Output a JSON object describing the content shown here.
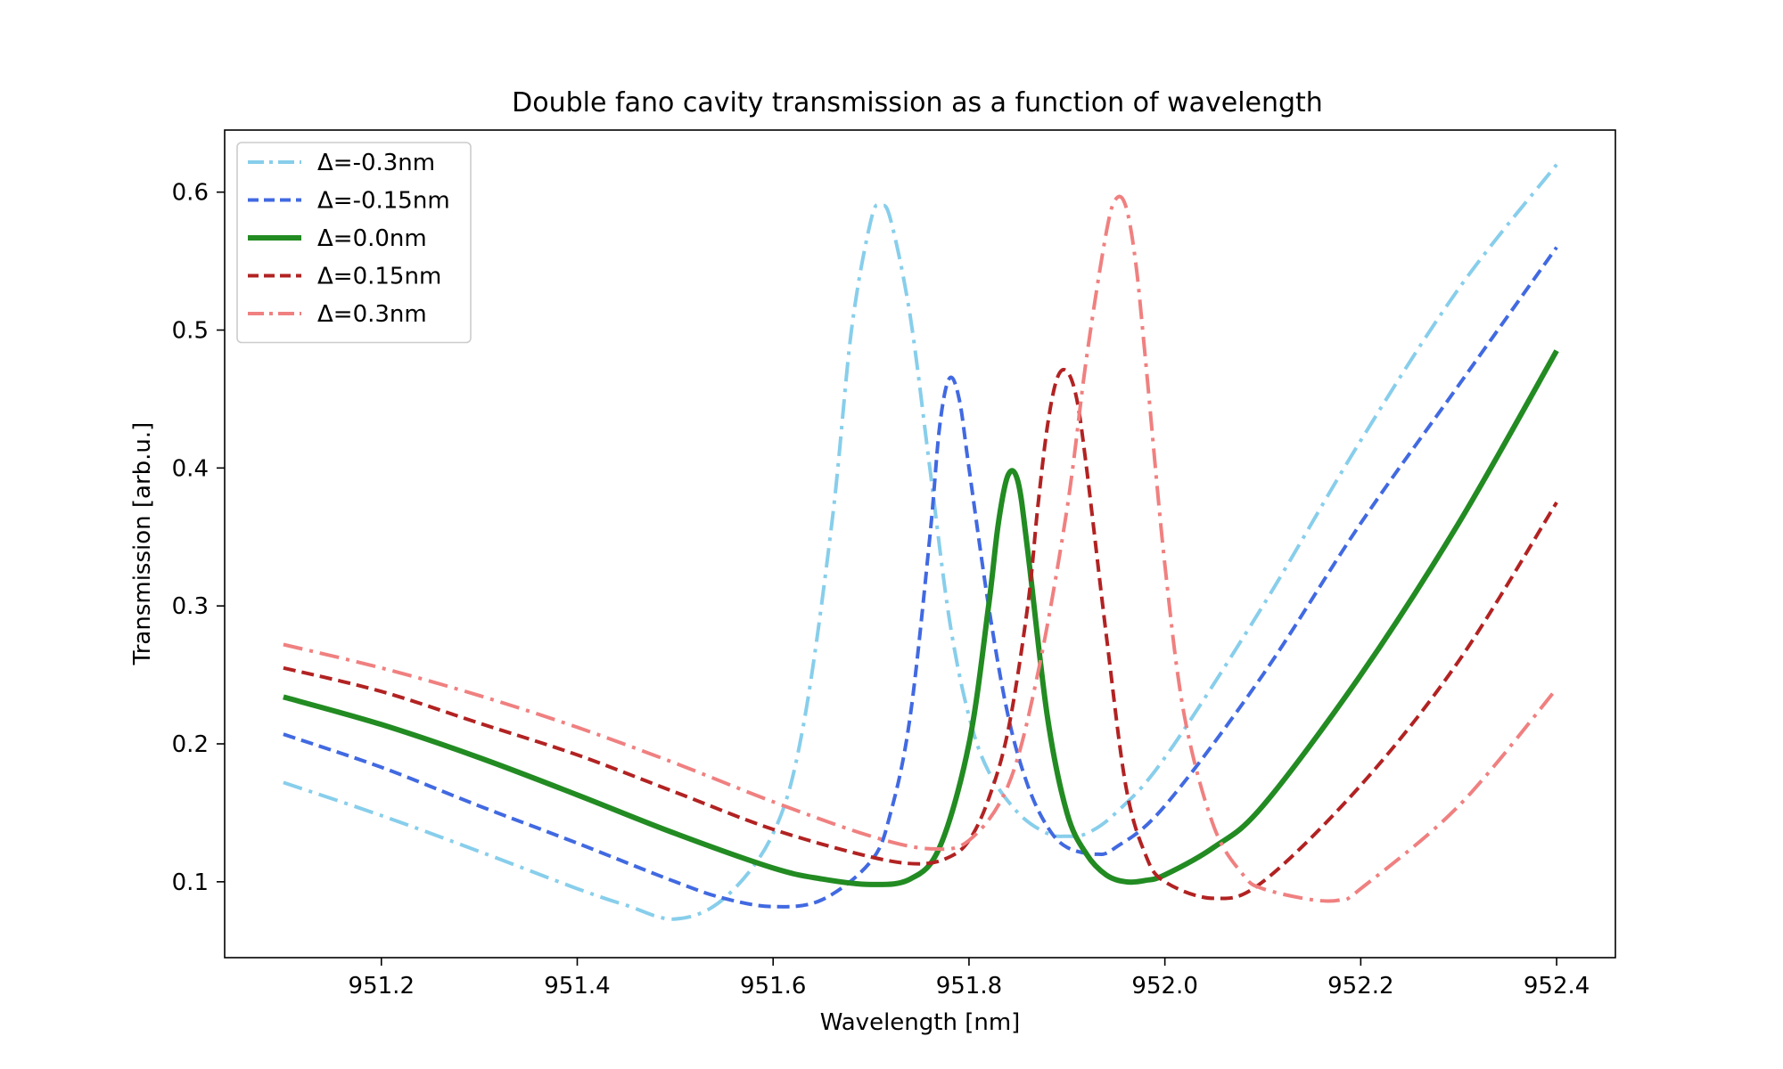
{
  "chart_data": {
    "type": "line",
    "title": "Double fano cavity transmission as a function of wavelength",
    "xlabel": "Wavelength [nm]",
    "ylabel": "Transmission [arb.u.]",
    "xlim": [
      951.04,
      952.46
    ],
    "ylim": [
      0.045,
      0.645
    ],
    "xticks": [
      951.2,
      951.4,
      951.6,
      951.8,
      952.0,
      952.2,
      952.4
    ],
    "xtick_labels": [
      "951.2",
      "951.4",
      "951.6",
      "951.8",
      "952.0",
      "952.2",
      "952.4"
    ],
    "yticks": [
      0.1,
      0.2,
      0.3,
      0.4,
      0.5,
      0.6
    ],
    "ytick_labels": [
      "0.1",
      "0.2",
      "0.3",
      "0.4",
      "0.5",
      "0.6"
    ],
    "grid": false,
    "legend": "top-left",
    "series": [
      {
        "name": "Δ=-0.3nm",
        "color": "#87CEEB",
        "style": "dashdot",
        "x": [
          951.1,
          951.2,
          951.3,
          951.4,
          951.45,
          951.5,
          951.55,
          951.6,
          951.63,
          951.66,
          951.68,
          951.7,
          951.71,
          951.72,
          951.74,
          951.76,
          951.78,
          951.8,
          951.82,
          951.85,
          951.88,
          951.9,
          951.92,
          951.95,
          952.0,
          952.1,
          952.2,
          952.3,
          952.4
        ],
        "y": [
          0.172,
          0.148,
          0.122,
          0.095,
          0.083,
          0.073,
          0.088,
          0.135,
          0.21,
          0.36,
          0.5,
          0.58,
          0.59,
          0.58,
          0.51,
          0.4,
          0.29,
          0.22,
          0.18,
          0.15,
          0.135,
          0.133,
          0.135,
          0.15,
          0.19,
          0.3,
          0.42,
          0.53,
          0.62
        ]
      },
      {
        "name": "Δ=-0.15nm",
        "color": "#4169E1",
        "style": "dashed",
        "x": [
          951.1,
          951.2,
          951.3,
          951.4,
          951.5,
          951.55,
          951.6,
          951.65,
          951.7,
          951.72,
          951.74,
          951.76,
          951.77,
          951.78,
          951.79,
          951.8,
          951.82,
          951.84,
          951.86,
          951.88,
          951.9,
          951.93,
          951.95,
          952.0,
          952.1,
          952.2,
          952.3,
          952.4
        ],
        "y": [
          0.207,
          0.183,
          0.155,
          0.128,
          0.1,
          0.088,
          0.082,
          0.087,
          0.115,
          0.15,
          0.22,
          0.35,
          0.43,
          0.465,
          0.45,
          0.4,
          0.3,
          0.22,
          0.17,
          0.14,
          0.125,
          0.12,
          0.125,
          0.155,
          0.25,
          0.36,
          0.46,
          0.56
        ]
      },
      {
        "name": "Δ=0.0nm",
        "color": "#228B22",
        "style": "solid",
        "x": [
          951.1,
          951.2,
          951.3,
          951.4,
          951.5,
          951.6,
          951.65,
          951.7,
          951.74,
          951.77,
          951.8,
          951.82,
          951.83,
          951.84,
          951.85,
          951.86,
          951.88,
          951.9,
          951.92,
          951.94,
          951.96,
          951.98,
          952.0,
          952.05,
          952.1,
          952.2,
          952.3,
          952.4
        ],
        "y": [
          0.234,
          0.214,
          0.19,
          0.163,
          0.135,
          0.11,
          0.102,
          0.098,
          0.102,
          0.125,
          0.2,
          0.3,
          0.36,
          0.395,
          0.39,
          0.34,
          0.22,
          0.15,
          0.12,
          0.105,
          0.1,
          0.101,
          0.105,
          0.125,
          0.155,
          0.25,
          0.36,
          0.485
        ]
      },
      {
        "name": "Δ=0.15nm",
        "color": "#B22222",
        "style": "dashed",
        "x": [
          951.1,
          951.2,
          951.3,
          951.4,
          951.5,
          951.6,
          951.7,
          951.75,
          951.78,
          951.8,
          951.82,
          951.84,
          951.86,
          951.87,
          951.88,
          951.89,
          951.9,
          951.91,
          951.92,
          951.94,
          951.96,
          951.98,
          952.0,
          952.05,
          952.1,
          952.2,
          952.3,
          952.4
        ],
        "y": [
          0.255,
          0.238,
          0.215,
          0.192,
          0.165,
          0.138,
          0.118,
          0.113,
          0.118,
          0.13,
          0.16,
          0.21,
          0.3,
          0.37,
          0.43,
          0.465,
          0.47,
          0.45,
          0.4,
          0.28,
          0.17,
          0.12,
          0.1,
          0.088,
          0.1,
          0.17,
          0.26,
          0.375
        ]
      },
      {
        "name": "Δ=0.3nm",
        "color": "#F08080",
        "style": "dashdot",
        "x": [
          951.1,
          951.2,
          951.3,
          951.4,
          951.5,
          951.6,
          951.7,
          951.76,
          951.8,
          951.84,
          951.87,
          951.9,
          951.92,
          951.94,
          951.95,
          951.96,
          951.97,
          951.98,
          952.0,
          952.02,
          952.05,
          952.08,
          952.1,
          952.15,
          952.18,
          952.2,
          952.3,
          952.4
        ],
        "y": [
          0.272,
          0.255,
          0.235,
          0.212,
          0.186,
          0.158,
          0.133,
          0.124,
          0.13,
          0.17,
          0.25,
          0.37,
          0.48,
          0.57,
          0.595,
          0.59,
          0.55,
          0.48,
          0.33,
          0.22,
          0.14,
          0.105,
          0.095,
          0.087,
          0.087,
          0.095,
          0.155,
          0.24
        ]
      }
    ]
  }
}
